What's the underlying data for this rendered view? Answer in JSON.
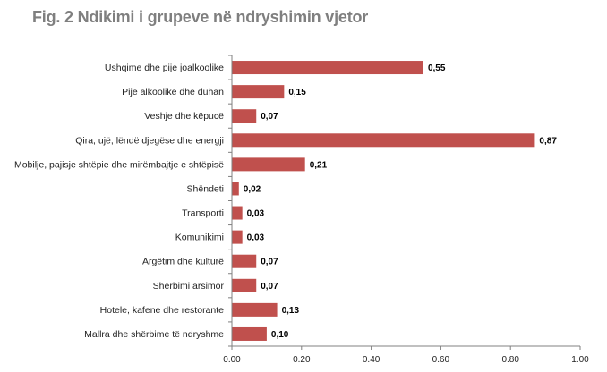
{
  "chart_data": {
    "type": "bar",
    "orientation": "horizontal",
    "title": "Fig. 2 Ndikimi i grupeve në ndryshimin vjetor",
    "categories": [
      "Ushqime dhe pije joalkoolike",
      "Pije alkoolike dhe duhan",
      "Veshje dhe këpucë",
      "Qira, ujë, lëndë djegëse dhe energji",
      "Mobilje, pajisje shtëpie dhe mirëmbajtje e shtëpisë",
      "Shëndeti",
      "Transporti",
      "Komunikimi",
      "Argëtim dhe kulturë",
      "Shërbimi arsimor",
      "Hotele, kafene dhe restorante",
      "Mallra dhe shërbime të ndryshme"
    ],
    "values": [
      0.55,
      0.15,
      0.07,
      0.87,
      0.21,
      0.02,
      0.03,
      0.03,
      0.07,
      0.07,
      0.13,
      0.1
    ],
    "value_labels": [
      "0,55",
      "0,15",
      "0,07",
      "0,87",
      "0,21",
      "0,02",
      "0,03",
      "0,03",
      "0,07",
      "0,07",
      "0,13",
      "0,10"
    ],
    "xlim": [
      0,
      1.0
    ],
    "xticks": [
      0,
      0.2,
      0.4,
      0.6,
      0.8,
      1.0
    ],
    "xtick_labels": [
      "0.00",
      "0.20",
      "0.40",
      "0.60",
      "0.80",
      "1.00"
    ],
    "xlabel": "",
    "ylabel": "",
    "grid": false,
    "legend": "none",
    "bar_color": "#c0504d",
    "axis_color": "#808080"
  }
}
